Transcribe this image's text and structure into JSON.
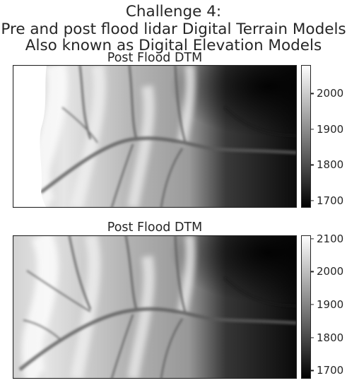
{
  "suptitle": {
    "line1": "Challenge 4:",
    "line2": "Pre and post flood lidar Digital Terrain Models",
    "line3": "Also known as Digital Elevation Models"
  },
  "chart_data": [
    {
      "type": "heatmap",
      "title": "Post Flood DTM",
      "colormap": "Greys_r",
      "colorbar": {
        "range": [
          1680,
          2080
        ],
        "ticks": [
          1700,
          1800,
          1900,
          2000
        ],
        "tick_labels": [
          "1700",
          "1800",
          "1900",
          "2000"
        ]
      },
      "nodata_region": "left edge blank (white)"
    },
    {
      "type": "heatmap",
      "title": "Post Flood DTM",
      "colormap": "Greys_r",
      "colorbar": {
        "range": [
          1675,
          2110
        ],
        "ticks": [
          1700,
          1800,
          1900,
          2000,
          2100
        ],
        "tick_labels": [
          "1700",
          "1800",
          "1900",
          "2000",
          "2100"
        ]
      }
    }
  ]
}
